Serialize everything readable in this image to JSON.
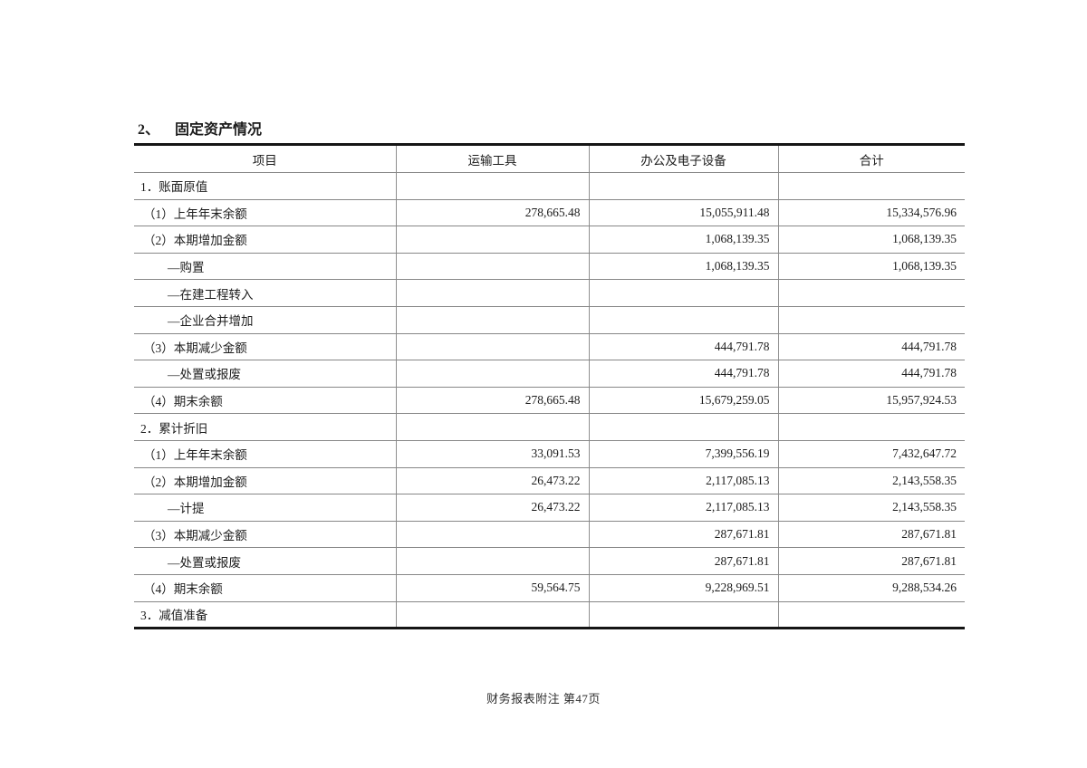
{
  "page": {
    "title_number": "2、",
    "title_text": "固定资产情况",
    "footer": "财务报表附注  第47页"
  },
  "table": {
    "headers": [
      "项目",
      "运输工具",
      "办公及电子设备",
      "合计"
    ],
    "rows": [
      {
        "label": "1．账面原值",
        "indent": "section",
        "values": [
          "",
          "",
          ""
        ]
      },
      {
        "label": "（1）上年年末余额",
        "indent": "item",
        "values": [
          "278,665.48",
          "15,055,911.48",
          "15,334,576.96"
        ]
      },
      {
        "label": "（2）本期增加金额",
        "indent": "item",
        "values": [
          "",
          "1,068,139.35",
          "1,068,139.35"
        ]
      },
      {
        "label": "—购置",
        "indent": "sub",
        "values": [
          "",
          "1,068,139.35",
          "1,068,139.35"
        ]
      },
      {
        "label": "—在建工程转入",
        "indent": "sub",
        "values": [
          "",
          "",
          ""
        ]
      },
      {
        "label": "—企业合并增加",
        "indent": "sub",
        "values": [
          "",
          "",
          ""
        ]
      },
      {
        "label": "（3）本期减少金额",
        "indent": "item",
        "values": [
          "",
          "444,791.78",
          "444,791.78"
        ]
      },
      {
        "label": "—处置或报废",
        "indent": "sub",
        "values": [
          "",
          "444,791.78",
          "444,791.78"
        ]
      },
      {
        "label": "（4）期末余额",
        "indent": "item",
        "values": [
          "278,665.48",
          "15,679,259.05",
          "15,957,924.53"
        ]
      },
      {
        "label": "2．累计折旧",
        "indent": "section",
        "values": [
          "",
          "",
          ""
        ]
      },
      {
        "label": "（1）上年年末余额",
        "indent": "item",
        "values": [
          "33,091.53",
          "7,399,556.19",
          "7,432,647.72"
        ]
      },
      {
        "label": "（2）本期增加金额",
        "indent": "item",
        "values": [
          "26,473.22",
          "2,117,085.13",
          "2,143,558.35"
        ]
      },
      {
        "label": "—计提",
        "indent": "sub",
        "values": [
          "26,473.22",
          "2,117,085.13",
          "2,143,558.35"
        ]
      },
      {
        "label": "（3）本期减少金额",
        "indent": "item",
        "values": [
          "",
          "287,671.81",
          "287,671.81"
        ]
      },
      {
        "label": "—处置或报废",
        "indent": "sub",
        "values": [
          "",
          "287,671.81",
          "287,671.81"
        ]
      },
      {
        "label": "（4）期末余额",
        "indent": "item",
        "values": [
          "59,564.75",
          "9,228,969.51",
          "9,288,534.26"
        ]
      },
      {
        "label": "3．减值准备",
        "indent": "section",
        "values": [
          "",
          "",
          ""
        ]
      }
    ]
  }
}
